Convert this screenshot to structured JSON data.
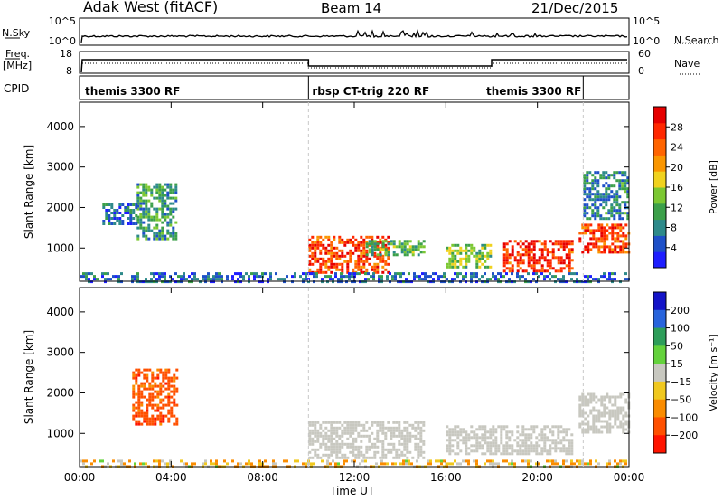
{
  "header": {
    "station": "Adak West (fitACF)",
    "beam": "Beam 14",
    "date": "21/Dec/2015"
  },
  "noise_panel": {
    "left_label": "N.Sky",
    "right_label": "N.Search",
    "left_ticks": [
      "10^5",
      "10^0"
    ],
    "right_ticks": [
      "10^5",
      "10^0"
    ]
  },
  "freq_panel": {
    "left_label_line1": "Freq.",
    "left_label_line2": "[MHz]",
    "left_ticks": [
      "18",
      "8"
    ],
    "right_label": "Nave",
    "right_ticks": [
      "60",
      "0"
    ]
  },
  "cpid": {
    "label": "CPID",
    "modes": [
      {
        "name": "themis 3300 RF",
        "start_hour": 0,
        "end_hour": 10
      },
      {
        "name": "rbsp CT-trig 220 RF",
        "start_hour": 10,
        "end_hour": 22
      },
      {
        "name": "themis 3300 RF",
        "start_hour": 18,
        "end_hour": 22
      }
    ]
  },
  "axes": {
    "x_label": "Time UT",
    "x_ticks": [
      "00:00",
      "04:00",
      "08:00",
      "12:00",
      "16:00",
      "20:00",
      "00:00"
    ],
    "x_range_hours": [
      0,
      24
    ],
    "y_label": "Slant Range [km]",
    "y_ticks": [
      "1000",
      "2000",
      "3000",
      "4000"
    ],
    "y_range_km": [
      180,
      4600
    ]
  },
  "power_colorbar": {
    "title": "Power [dB]",
    "ticks": [
      "4",
      "8",
      "12",
      "16",
      "20",
      "24",
      "28"
    ],
    "colors": [
      "#1e1eff",
      "#1e50c8",
      "#2e8a8a",
      "#3ca04a",
      "#7cc832",
      "#f0d21e",
      "#fa9600",
      "#ff6400",
      "#ff2800",
      "#e60000"
    ]
  },
  "velocity_colorbar": {
    "title": "Velocity [m s⁻¹]",
    "ticks": [
      "200",
      "100",
      "50",
      "15",
      "−15",
      "−50",
      "−100",
      "−200"
    ],
    "colors": [
      "#1414c8",
      "#2864dc",
      "#2e9e5a",
      "#64d23c",
      "#c8c8c0",
      "#f0c81e",
      "#fa8c00",
      "#ff5000",
      "#ff1400"
    ]
  },
  "chart_data": [
    {
      "type": "heatmap",
      "title": "Power [dB]",
      "xlabel": "Time UT",
      "ylabel": "Slant Range [km]",
      "x_range": [
        0,
        24
      ],
      "ylim": [
        180,
        4600
      ],
      "color_range": [
        0,
        32
      ],
      "regions": [
        {
          "t": [
            2.5,
            4.2
          ],
          "r": [
            1200,
            2600
          ],
          "value": 10
        },
        {
          "t": [
            1.0,
            2.5
          ],
          "r": [
            1600,
            2100
          ],
          "value": 6
        },
        {
          "t": [
            10.0,
            13.5
          ],
          "r": [
            400,
            1300
          ],
          "value": 26
        },
        {
          "t": [
            12.5,
            15.0
          ],
          "r": [
            800,
            1200
          ],
          "value": 12
        },
        {
          "t": [
            16.0,
            18.0
          ],
          "r": [
            500,
            1100
          ],
          "value": 14
        },
        {
          "t": [
            18.5,
            21.5
          ],
          "r": [
            400,
            1200
          ],
          "value": 27
        },
        {
          "t": [
            21.8,
            24.0
          ],
          "r": [
            900,
            1600
          ],
          "value": 26
        },
        {
          "t": [
            22.0,
            24.0
          ],
          "r": [
            1700,
            2900
          ],
          "value": 8
        },
        {
          "t": [
            0.0,
            24.0
          ],
          "r": [
            180,
            400
          ],
          "value": 6
        }
      ]
    },
    {
      "type": "heatmap",
      "title": "Velocity [m s⁻¹]",
      "xlabel": "Time UT",
      "ylabel": "Slant Range [km]",
      "x_range": [
        0,
        24
      ],
      "ylim": [
        180,
        4600
      ],
      "color_range": [
        -250,
        250
      ],
      "regions": [
        {
          "t": [
            2.3,
            4.2
          ],
          "r": [
            1200,
            2600
          ],
          "value": -150
        },
        {
          "t": [
            10.0,
            15.0
          ],
          "r": [
            400,
            1300
          ],
          "value": 0
        },
        {
          "t": [
            16.0,
            21.5
          ],
          "r": [
            500,
            1200
          ],
          "value": 0
        },
        {
          "t": [
            21.8,
            24.0
          ],
          "r": [
            1000,
            2000
          ],
          "value": 0
        },
        {
          "t": [
            0.0,
            24.0
          ],
          "r": [
            180,
            350
          ],
          "value": -40
        }
      ]
    }
  ]
}
